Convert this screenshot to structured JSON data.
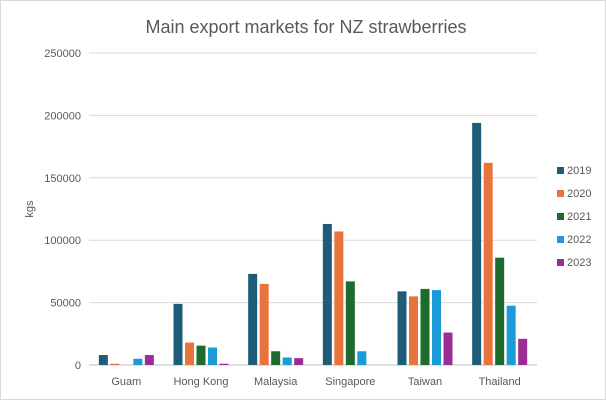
{
  "chart_data": {
    "type": "bar",
    "title": "Main export markets for NZ strawberries",
    "xlabel": "",
    "ylabel": "kgs",
    "ylim": [
      0,
      250000
    ],
    "yticks": [
      0,
      50000,
      100000,
      150000,
      200000,
      250000
    ],
    "ytick_labels": [
      "0",
      "50000",
      "100000",
      "150000",
      "200000",
      "250000"
    ],
    "grid": true,
    "legend_position": "right",
    "categories": [
      "Guam",
      "Hong Kong",
      "Malaysia",
      "Singapore",
      "Taiwan",
      "Thailand"
    ],
    "series": [
      {
        "name": "2019",
        "color": "#1f5c7a",
        "values": [
          8000,
          49000,
          73000,
          113000,
          59000,
          194000
        ]
      },
      {
        "name": "2020",
        "color": "#e8743b",
        "values": [
          1000,
          18000,
          65000,
          107000,
          55000,
          162000
        ]
      },
      {
        "name": "2021",
        "color": "#1e6b2e",
        "values": [
          0,
          15500,
          11000,
          67000,
          61000,
          86000
        ]
      },
      {
        "name": "2022",
        "color": "#1a9bd7",
        "values": [
          5000,
          14000,
          6000,
          11000,
          60000,
          47500
        ]
      },
      {
        "name": "2023",
        "color": "#9b2d96",
        "values": [
          8000,
          1000,
          5500,
          0,
          26000,
          21000
        ]
      }
    ]
  }
}
